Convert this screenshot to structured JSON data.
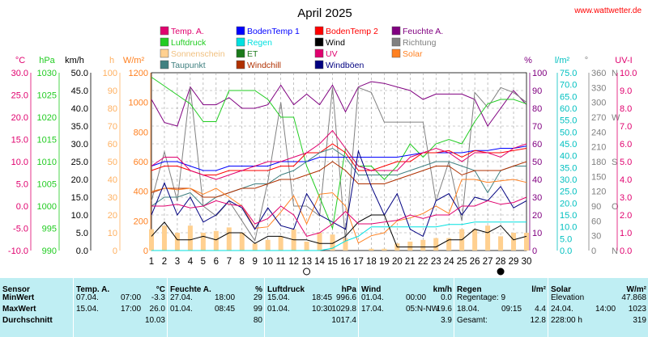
{
  "header": {
    "title": "April 2025",
    "site": "www.wattwetter.de"
  },
  "legend": [
    {
      "label": "Temp. A.",
      "color": "#e0006e"
    },
    {
      "label": "BodenTemp 1",
      "color": "#0000ff"
    },
    {
      "label": "BodenTemp 2",
      "color": "#ff0000"
    },
    {
      "label": "Feuchte A.",
      "color": "#800080"
    },
    {
      "label": "Luftdruck",
      "color": "#22cc22"
    },
    {
      "label": "Regen",
      "color": "#00e0e0"
    },
    {
      "label": "Wind",
      "color": "#000000"
    },
    {
      "label": "Richtung",
      "color": "#808080"
    },
    {
      "label": "Sonnenschein",
      "color": "#ffd090"
    },
    {
      "label": "ET",
      "color": "#1a7a1a"
    },
    {
      "label": "UV",
      "color": "#e0006e"
    },
    {
      "label": "Solar",
      "color": "#ff8020"
    },
    {
      "label": "Taupunkt",
      "color": "#408080"
    },
    {
      "label": "Windchill",
      "color": "#b03000"
    },
    {
      "label": "Windböen",
      "color": "#000080"
    }
  ],
  "axis_units": {
    "temp": "°C",
    "press": "hPa",
    "wind": "km/h",
    "sun_h": "h",
    "solar": "W/m²",
    "hum": "%",
    "rain": "l/m²",
    "dir": "°",
    "uv": "UV-I"
  },
  "axis_colors": {
    "temp": "#e0006e",
    "press": "#22cc22",
    "wind": "#000000",
    "sun_h": "#ffb060",
    "solar": "#ff8020",
    "hum": "#800080",
    "rain": "#00c0c0",
    "dir": "#808080",
    "uv": "#e0006e"
  },
  "chart_data": {
    "type": "line",
    "x": [
      1,
      2,
      3,
      4,
      5,
      6,
      7,
      8,
      9,
      10,
      11,
      12,
      13,
      14,
      15,
      16,
      17,
      18,
      19,
      20,
      21,
      22,
      23,
      24,
      25,
      26,
      27,
      28,
      29,
      30
    ],
    "axes": {
      "temp": {
        "ticks": [
          "30.0",
          "25.0",
          "20.0",
          "15.0",
          "10.0",
          "5.0",
          "0.0",
          "-5.0",
          "-10.0"
        ],
        "range": [
          -10,
          30
        ]
      },
      "press": {
        "ticks": [
          "1030",
          "1025",
          "1020",
          "1015",
          "1010",
          "1005",
          "1000",
          "995",
          "990"
        ],
        "range": [
          990,
          1030
        ]
      },
      "wind": {
        "ticks": [
          "50.0",
          "45.0",
          "40.0",
          "35.0",
          "30.0",
          "25.0",
          "20.0",
          "15.0",
          "10.0",
          "5.0",
          "0.0"
        ],
        "range": [
          0,
          50
        ]
      },
      "sun_h": {
        "ticks": [
          "100",
          "90",
          "80",
          "70",
          "60",
          "50",
          "40",
          "30",
          "20",
          "10",
          "0"
        ],
        "range": [
          0,
          100
        ]
      },
      "solar": {
        "ticks": [
          "1200",
          "1000",
          "800",
          "600",
          "400",
          "200",
          "0"
        ],
        "range": [
          0,
          1200
        ]
      },
      "hum": {
        "ticks": [
          "100",
          "90",
          "80",
          "70",
          "60",
          "50",
          "40",
          "30",
          "20",
          "10",
          "0"
        ],
        "range": [
          0,
          100
        ]
      },
      "rain": {
        "ticks": [
          "75.0",
          "70.0",
          "65.0",
          "60.0",
          "55.0",
          "50.0",
          "45.0",
          "40.0",
          "35.0",
          "30.0",
          "25.0",
          "20.0",
          "15.0",
          "10.0",
          "5.0",
          "0.0"
        ],
        "range": [
          0,
          75
        ]
      },
      "dir": {
        "ticks": [
          "360",
          "330",
          "300",
          "270",
          "240",
          "210",
          "180",
          "150",
          "120",
          "90",
          "60",
          "30",
          "0"
        ],
        "labels": [
          "N",
          "",
          "",
          "W",
          "",
          "",
          "S",
          "",
          "",
          "O",
          "",
          "",
          "N"
        ],
        "range": [
          0,
          360
        ]
      },
      "uv": {
        "ticks": [
          "10.0",
          "9.0",
          "8.0",
          "7.0",
          "6.0",
          "5.0",
          "4.0",
          "3.0",
          "2.0",
          "1.0",
          "0.0"
        ],
        "range": [
          0,
          10
        ]
      }
    },
    "series": [
      {
        "name": "Feuchte A.",
        "axis": "hum",
        "color": "#800080",
        "values": [
          85,
          72,
          70,
          92,
          82,
          82,
          86,
          80,
          80,
          82,
          93,
          82,
          88,
          82,
          93,
          78,
          92,
          95,
          94,
          92,
          90,
          85,
          88,
          88,
          88,
          85,
          70,
          80,
          90,
          82
        ]
      },
      {
        "name": "Richtung",
        "axis": "dir",
        "color": "#808080",
        "values": [
          100,
          200,
          100,
          330,
          90,
          70,
          100,
          60,
          20,
          140,
          300,
          90,
          90,
          70,
          330,
          20,
          330,
          320,
          260,
          260,
          260,
          260,
          100,
          180,
          60,
          320,
          290,
          330,
          320,
          300
        ]
      },
      {
        "name": "Luftdruck",
        "axis": "press",
        "color": "#22cc22",
        "values": [
          1029,
          1027,
          1025,
          1023,
          1019,
          1019,
          1026,
          1026,
          1026,
          1024,
          1020,
          1020,
          1009,
          1002,
          995,
          1013,
          1009,
          1009,
          1006,
          1009,
          1014,
          1011,
          1014,
          1015,
          1014,
          1019,
          1023,
          1024,
          1024,
          1023
        ]
      },
      {
        "name": "BodenTemp 1",
        "axis": "temp",
        "color": "#0000ff",
        "values": [
          9,
          10,
          10,
          9,
          8,
          8,
          9,
          9,
          9,
          9,
          10,
          10,
          10,
          11,
          11,
          11,
          11,
          11,
          11,
          11,
          11.5,
          12,
          12,
          12,
          12,
          12.5,
          12.5,
          13,
          13,
          13.5
        ]
      },
      {
        "name": "BodenTemp 2",
        "axis": "temp",
        "color": "#ff0000",
        "values": [
          8,
          9,
          9,
          8,
          7,
          7,
          8,
          8,
          8,
          8,
          9,
          9,
          12,
          12,
          14,
          12,
          8,
          8,
          9,
          10,
          10,
          12,
          12,
          12.5,
          11,
          12.5,
          12,
          12,
          12.5,
          13
        ]
      },
      {
        "name": "Temp. A.",
        "axis": "temp",
        "color": "#e0006e",
        "values": [
          9,
          11,
          11,
          8,
          7,
          6,
          7,
          8,
          9,
          10,
          10,
          11,
          12,
          14,
          17,
          13,
          9,
          8,
          8,
          8,
          11,
          12,
          13,
          12,
          10,
          12,
          12,
          11,
          13,
          14
        ]
      },
      {
        "name": "Taupunkt",
        "axis": "temp",
        "color": "#408080",
        "values": [
          0,
          2,
          2,
          3,
          0,
          2,
          3,
          4,
          5,
          5,
          7,
          8,
          10,
          12,
          13,
          11,
          7,
          7,
          7,
          7,
          8,
          9,
          10,
          10,
          9,
          8,
          3,
          8,
          9,
          9
        ]
      },
      {
        "name": "Windchill",
        "axis": "temp",
        "color": "#b03000",
        "values": [
          3,
          4,
          4,
          4,
          2,
          2,
          3,
          4,
          4,
          5,
          6,
          6,
          7,
          8,
          10,
          8,
          5,
          5,
          5,
          6,
          7,
          8,
          9,
          9,
          7,
          8,
          8,
          8,
          9,
          10
        ]
      },
      {
        "name": "Solar",
        "axis": "solar",
        "color": "#ff8020",
        "values": [
          400,
          420,
          410,
          420,
          380,
          420,
          360,
          300,
          150,
          160,
          260,
          370,
          180,
          380,
          390,
          300,
          50,
          100,
          120,
          200,
          220,
          250,
          300,
          250,
          480,
          480,
          460,
          470,
          480,
          460
        ]
      },
      {
        "name": "Windböen",
        "axis": "wind",
        "color": "#000080",
        "values": [
          10,
          19,
          10,
          15,
          8,
          10,
          14,
          12,
          6,
          12,
          7,
          6,
          16,
          10,
          8,
          6,
          28,
          18,
          10,
          16,
          6,
          4,
          14,
          16,
          10,
          15,
          14,
          18,
          12,
          14
        ]
      },
      {
        "name": "Wind",
        "axis": "wind",
        "color": "#000000",
        "values": [
          4,
          8,
          3,
          3,
          4,
          3,
          5,
          5,
          2,
          4,
          4,
          3,
          3,
          2,
          2,
          4,
          8,
          10,
          10,
          1,
          1,
          1,
          1,
          3,
          3,
          6,
          5,
          7,
          3,
          4
        ]
      },
      {
        "name": "UV",
        "axis": "uv",
        "color": "#e0006e",
        "values": [
          2.5,
          2.5,
          2.6,
          2.4,
          2.5,
          2.8,
          2.6,
          2.5,
          1.5,
          1.8,
          2.5,
          2.0,
          0.8,
          1.0,
          1.5,
          2.2,
          1.5,
          1.5,
          1.6,
          1.7,
          2.0,
          1.8,
          2.0,
          2.0,
          2.5,
          2.5,
          2.8,
          2.6,
          2.7,
          3.0
        ]
      },
      {
        "name": "Regen",
        "axis": "rain",
        "color": "#00e0e0",
        "values": [
          0,
          0,
          0,
          0,
          0,
          0,
          0,
          0,
          0,
          0,
          0,
          0,
          0,
          0,
          1,
          4,
          6,
          10,
          10,
          10,
          10,
          10,
          10,
          11,
          11,
          12,
          12,
          12,
          12,
          12
        ]
      }
    ],
    "bars": {
      "name": "Sonnenschein",
      "axis": "sun_h",
      "color": "#ffd090",
      "values": [
        12,
        14,
        10,
        14,
        10,
        11,
        13,
        10,
        4,
        6,
        8,
        12,
        5,
        10,
        9,
        7,
        0,
        1,
        1,
        4,
        5,
        6,
        7,
        7,
        12,
        12,
        14,
        8,
        10,
        10
      ]
    },
    "moon_days": [
      13,
      28
    ],
    "grid": true
  },
  "table": {
    "columns": [
      {
        "title": "Sensor",
        "unit": "",
        "rows": [
          [
            "MinWert",
            "",
            ""
          ],
          [
            "MaxWert",
            "",
            ""
          ],
          [
            "Durchschnitt",
            "",
            ""
          ],
          [
            "",
            "",
            " "
          ]
        ]
      },
      {
        "title": "Temp. A.",
        "unit": "°C",
        "rows": [
          [
            "07.04.",
            "07:00",
            "-3.3"
          ],
          [
            "15.04.",
            "17:00",
            "26.0"
          ],
          [
            "",
            "",
            "10.03"
          ]
        ]
      },
      {
        "title": "Feuchte A.",
        "unit": "%",
        "rows": [
          [
            "27.04.",
            "18:00",
            "29"
          ],
          [
            "01.04.",
            "08:45",
            "99"
          ],
          [
            "",
            "",
            "80"
          ]
        ]
      },
      {
        "title": "Luftdruck",
        "unit": "hPa",
        "rows": [
          [
            "15.04.",
            "18:45",
            "996.6"
          ],
          [
            "01.04.",
            "10:30",
            "1029.8"
          ],
          [
            "",
            "",
            "1017.4"
          ]
        ]
      },
      {
        "title": "Wind",
        "unit": "km/h",
        "rows": [
          [
            "01.04.",
            "00:00",
            "0.0"
          ],
          [
            "17.04.",
            "05:N-NW",
            "19.6"
          ],
          [
            "",
            "",
            "3.9"
          ]
        ]
      },
      {
        "title": "Regen",
        "unit": "l/m²",
        "rows": [
          [
            "Regentage: 9",
            "",
            ""
          ],
          [
            "18.04.",
            "09:15",
            "4.4"
          ],
          [
            "Gesamt:",
            "",
            "12.8"
          ]
        ]
      },
      {
        "title": "Solar",
        "unit": "W/m²",
        "rows": [
          [
            "Elevation",
            "",
            "47.868"
          ],
          [
            "24.04.",
            "14:00",
            "1023"
          ],
          [
            "228:00 h",
            "",
            "319"
          ]
        ]
      }
    ]
  }
}
